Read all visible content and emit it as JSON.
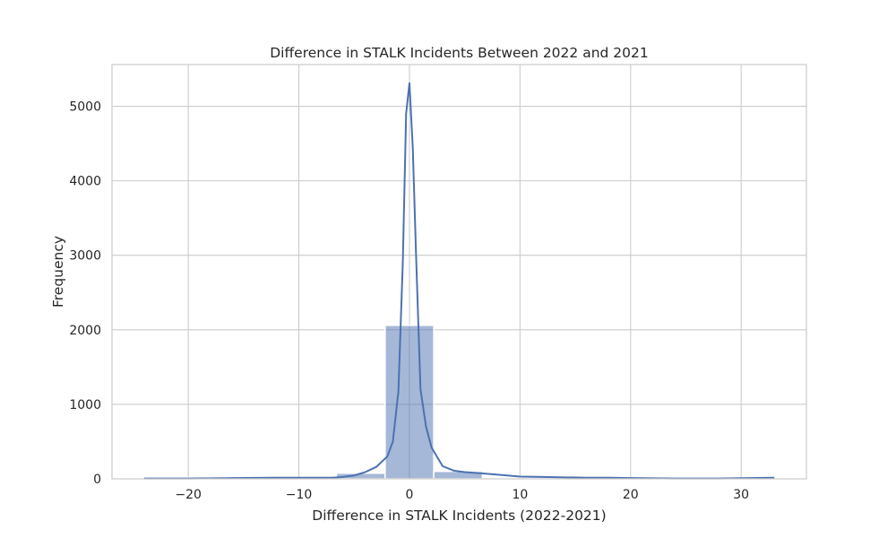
{
  "chart_data": {
    "type": "histogram",
    "title": "Difference in STALK Incidents Between 2022 and 2021",
    "xlabel": "Difference in STALK Incidents (2022-2021)",
    "ylabel": "Frequency",
    "xlim": [
      -26.9,
      35.9
    ],
    "ylim": [
      0,
      5560
    ],
    "x_ticks": [
      -20,
      -10,
      0,
      10,
      20,
      30
    ],
    "x_tick_labels": [
      "−20",
      "−10",
      "0",
      "10",
      "20",
      "30"
    ],
    "y_ticks": [
      0,
      1000,
      2000,
      3000,
      4000,
      5000
    ],
    "y_tick_labels": [
      "0",
      "1000",
      "2000",
      "3000",
      "4000",
      "5000"
    ],
    "grid": true,
    "colors": {
      "bar": "#4c72b0",
      "line": "#4c72b0",
      "grid": "#cccccc"
    },
    "bins": [
      {
        "x0": -24.0,
        "x1": -19.7,
        "count": 20
      },
      {
        "x0": -19.7,
        "x1": -15.3,
        "count": 5
      },
      {
        "x0": -15.3,
        "x1": -11.0,
        "count": 10
      },
      {
        "x0": -11.0,
        "x1": -6.6,
        "count": 15
      },
      {
        "x0": -6.6,
        "x1": -2.2,
        "count": 75
      },
      {
        "x0": -2.2,
        "x1": 2.2,
        "count": 2060
      },
      {
        "x0": 2.2,
        "x1": 6.6,
        "count": 100
      },
      {
        "x0": 6.6,
        "x1": 11.0,
        "count": 15
      },
      {
        "x0": 11.0,
        "x1": 15.3,
        "count": 10
      },
      {
        "x0": 15.3,
        "x1": 19.7,
        "count": 10
      },
      {
        "x0": 19.7,
        "x1": 24.0,
        "count": 5
      },
      {
        "x0": 24.0,
        "x1": 28.4,
        "count": 5
      },
      {
        "x0": 28.4,
        "x1": 32.7,
        "count": 10
      }
    ],
    "kde": {
      "x": [
        -24,
        -20,
        -16,
        -12,
        -9,
        -7,
        -6,
        -5,
        -4,
        -3,
        -2,
        -1.5,
        -1,
        -0.6,
        -0.3,
        0,
        0.3,
        0.6,
        1,
        1.5,
        2,
        3,
        4,
        5,
        6,
        8,
        10,
        12,
        14,
        16,
        18,
        20,
        24,
        28,
        33
      ],
      "y": [
        5,
        5,
        10,
        15,
        15,
        15,
        25,
        45,
        90,
        160,
        300,
        500,
        1170,
        2900,
        4900,
        5310,
        4450,
        3000,
        1200,
        700,
        420,
        170,
        110,
        90,
        80,
        55,
        30,
        25,
        20,
        15,
        15,
        10,
        5,
        5,
        15
      ]
    }
  }
}
